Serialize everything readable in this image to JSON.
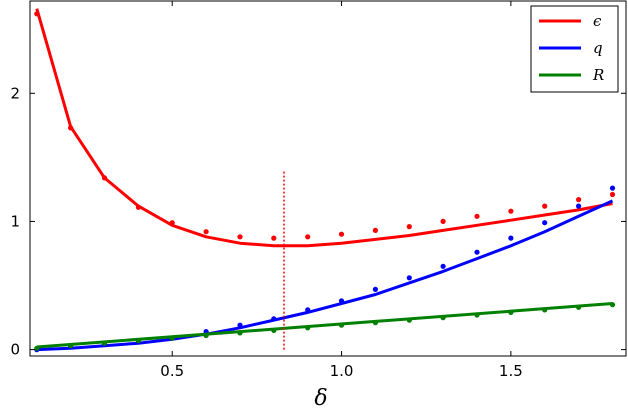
{
  "chart_data": {
    "type": "line",
    "title": "",
    "xlabel": "δ",
    "ylabel": "",
    "xlim": [
      0.08,
      1.84
    ],
    "ylim": [
      -0.05,
      2.72
    ],
    "xticks": [
      0.5,
      1.0,
      1.5
    ],
    "yticks": [
      0,
      1,
      2
    ],
    "xtick_labels": [
      "0.5",
      "1.0",
      "1.5"
    ],
    "ytick_labels": [
      "0",
      "1",
      "2"
    ],
    "legend_position": "top-right",
    "grid": false,
    "vline": {
      "x": 0.83,
      "y_range": [
        0.0,
        1.39
      ],
      "style": "dotted",
      "color": "#ff0000"
    },
    "series": [
      {
        "name": "ϵ",
        "color": "#ff0000",
        "points": {
          "x": [
            0.1,
            0.2,
            0.3,
            0.4,
            0.5,
            0.6,
            0.7,
            0.8,
            0.9,
            1.0,
            1.1,
            1.2,
            1.3,
            1.4,
            1.5,
            1.6,
            1.7,
            1.8
          ],
          "y": [
            2.62,
            1.73,
            1.34,
            1.11,
            0.99,
            0.92,
            0.88,
            0.87,
            0.88,
            0.9,
            0.93,
            0.96,
            1.0,
            1.04,
            1.08,
            1.12,
            1.17,
            1.21
          ]
        },
        "fit": {
          "x": [
            0.1,
            0.2,
            0.3,
            0.4,
            0.5,
            0.6,
            0.7,
            0.8,
            0.9,
            1.0,
            1.1,
            1.2,
            1.3,
            1.4,
            1.5,
            1.6,
            1.7,
            1.8
          ],
          "y": [
            2.66,
            1.74,
            1.34,
            1.12,
            0.97,
            0.88,
            0.83,
            0.81,
            0.81,
            0.83,
            0.86,
            0.89,
            0.93,
            0.97,
            1.01,
            1.05,
            1.09,
            1.14
          ]
        }
      },
      {
        "name": "q",
        "color": "#0000ff",
        "points": {
          "x": [
            0.1,
            0.2,
            0.3,
            0.4,
            0.5,
            0.6,
            0.7,
            0.8,
            0.9,
            1.0,
            1.1,
            1.2,
            1.3,
            1.4,
            1.5,
            1.6,
            1.7,
            1.8
          ],
          "y": [
            0.0,
            0.02,
            0.04,
            0.07,
            0.09,
            0.14,
            0.19,
            0.24,
            0.31,
            0.38,
            0.47,
            0.56,
            0.65,
            0.76,
            0.87,
            0.99,
            1.12,
            1.26
          ]
        },
        "fit": {
          "x": [
            0.1,
            0.2,
            0.3,
            0.4,
            0.5,
            0.6,
            0.7,
            0.8,
            0.9,
            1.0,
            1.1,
            1.2,
            1.3,
            1.4,
            1.5,
            1.6,
            1.7,
            1.8
          ],
          "y": [
            0.0,
            0.01,
            0.03,
            0.05,
            0.08,
            0.12,
            0.17,
            0.23,
            0.29,
            0.36,
            0.43,
            0.52,
            0.61,
            0.71,
            0.81,
            0.92,
            1.04,
            1.16
          ]
        }
      },
      {
        "name": "R",
        "color": "#008000",
        "points": {
          "x": [
            0.1,
            0.2,
            0.3,
            0.4,
            0.5,
            0.6,
            0.7,
            0.8,
            0.9,
            1.0,
            1.1,
            1.2,
            1.3,
            1.4,
            1.5,
            1.6,
            1.7,
            1.8
          ],
          "y": [
            0.01,
            0.03,
            0.05,
            0.07,
            0.09,
            0.11,
            0.13,
            0.15,
            0.17,
            0.19,
            0.21,
            0.23,
            0.25,
            0.27,
            0.29,
            0.31,
            0.33,
            0.35
          ]
        },
        "fit": {
          "x": [
            0.1,
            1.8
          ],
          "y": [
            0.02,
            0.36
          ]
        }
      }
    ]
  }
}
